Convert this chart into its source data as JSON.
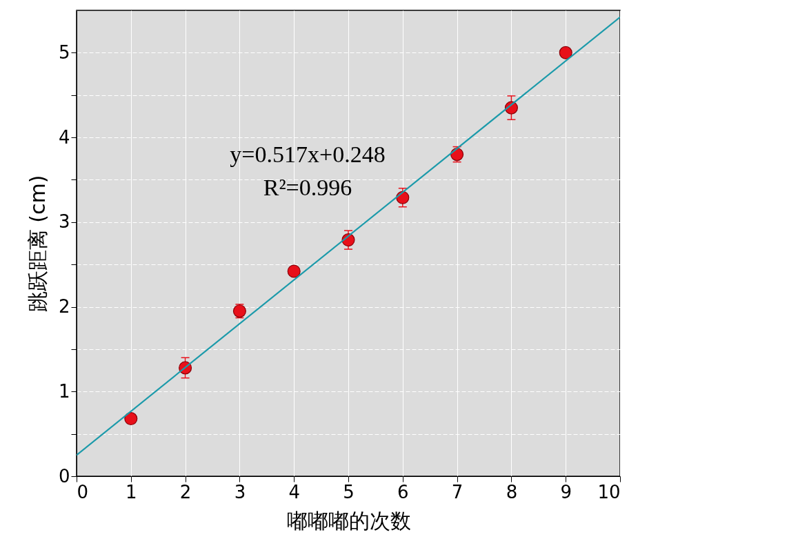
{
  "chart_data": {
    "type": "scatter",
    "xlabel": "嘟嘟嘟的次数",
    "ylabel": "跳跃距离 (cm)",
    "x": [
      1,
      2,
      3,
      4,
      5,
      6,
      7,
      8,
      9
    ],
    "series": [
      {
        "color": "#e8101a",
        "values": [
          0.68,
          1.28,
          1.95,
          2.42,
          2.79,
          3.29,
          3.8,
          4.35,
          5.0
        ],
        "errors": [
          0.03,
          0.12,
          0.08,
          0.03,
          0.11,
          0.11,
          0.09,
          0.14,
          0.03
        ]
      },
      {
        "type": "line",
        "marker": "none",
        "color": "#1b9aaa",
        "x": [
          0,
          10
        ],
        "values": [
          0.25,
          5.42
        ]
      }
    ],
    "xlim": [
      0,
      10
    ],
    "ylim": [
      0,
      5.5
    ],
    "xticks": [
      0,
      1,
      2,
      3,
      4,
      5,
      6,
      7,
      8,
      9,
      10
    ],
    "yticks": [
      0,
      {
        "value": 0.5,
        "label": null
      },
      1,
      {
        "value": 1.5,
        "label": null
      },
      2,
      {
        "value": 2.5,
        "label": null
      },
      3,
      {
        "value": 3.5,
        "label": null
      },
      4,
      {
        "value": 4.5,
        "label": null
      },
      5
    ],
    "grid": true,
    "marker": "circle",
    "annotations": [
      "y=0.517x+0.248",
      "R²=0.996"
    ]
  }
}
